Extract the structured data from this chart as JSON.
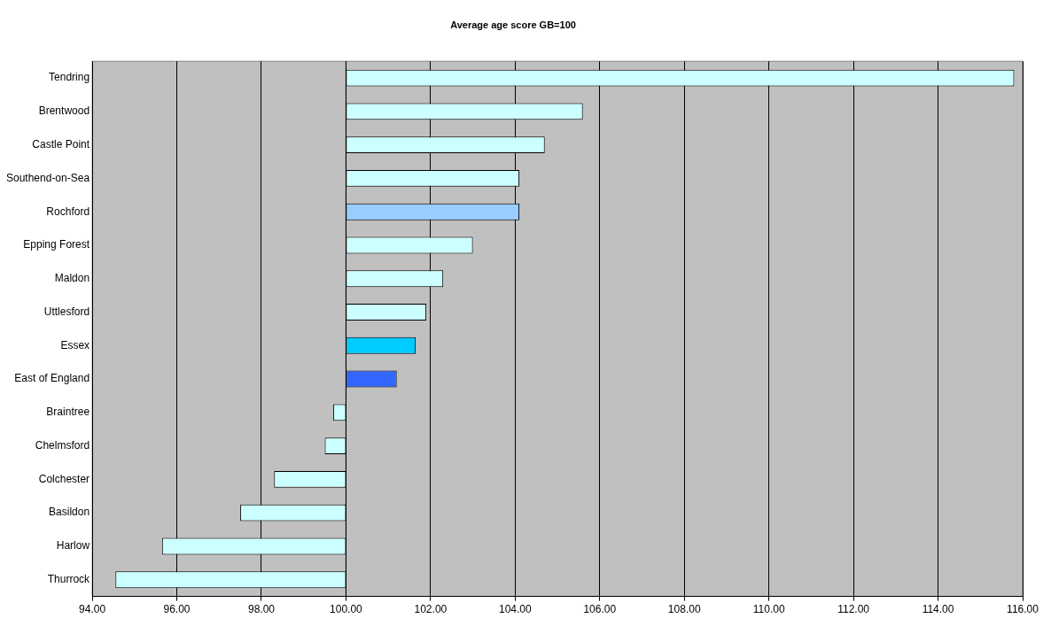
{
  "chart_data": {
    "type": "bar",
    "orientation": "horizontal",
    "title": "Average age score GB=100",
    "categories": [
      "Tendring",
      "Brentwood",
      "Castle Point",
      "Southend-on-Sea",
      "Rochford",
      "Epping Forest",
      "Maldon",
      "Uttlesford",
      "Essex",
      "East of England",
      "Braintree",
      "Chelmsford",
      "Colchester",
      "Basildon",
      "Harlow",
      "Thurrock"
    ],
    "base": [
      100,
      100,
      100,
      100,
      100,
      100,
      100,
      100,
      100,
      100,
      100,
      100,
      100,
      100,
      100,
      100
    ],
    "values": [
      15.8,
      5.6,
      4.7,
      4.1,
      4.1,
      3.0,
      2.3,
      1.9,
      1.65,
      1.2,
      -0.3,
      -0.5,
      -1.7,
      -2.5,
      -4.35,
      -5.45
    ],
    "colors": [
      "#ccffff",
      "#ccffff",
      "#ccffff",
      "#ccffff",
      "#99ccff",
      "#ccffff",
      "#ccffff",
      "#ccffff",
      "#00ccff",
      "#3366ff",
      "#ccffff",
      "#ccffff",
      "#ccffff",
      "#ccffff",
      "#ccffff",
      "#ccffff"
    ],
    "xlim": [
      94,
      116
    ],
    "xticks": [
      {
        "value": 94,
        "label": "94.00"
      },
      {
        "value": 96,
        "label": "96.00"
      },
      {
        "value": 98,
        "label": "98.00"
      },
      {
        "value": 100,
        "label": "100.00"
      },
      {
        "value": 102,
        "label": "102.00"
      },
      {
        "value": 104,
        "label": "104.00"
      },
      {
        "value": 106,
        "label": "106.00"
      },
      {
        "value": 108,
        "label": "108.00"
      },
      {
        "value": 110,
        "label": "110.00"
      },
      {
        "value": 112,
        "label": "112.00"
      },
      {
        "value": 114,
        "label": "114.00"
      },
      {
        "value": 116,
        "label": "116.00"
      }
    ],
    "grid": "x",
    "legend": false
  }
}
